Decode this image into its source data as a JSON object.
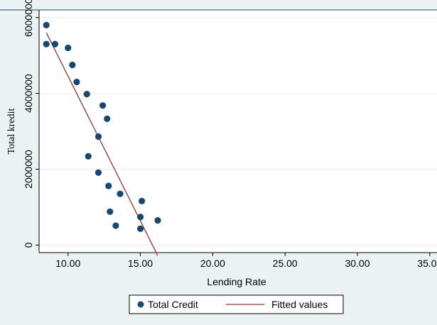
{
  "chart_data": {
    "type": "scatter",
    "xlabel": "Lending Rate",
    "ylabel": "Total kredit",
    "xlim": [
      8.0,
      35.5
    ],
    "ylim": [
      -200000,
      6200000
    ],
    "x_ticks": [
      10,
      15,
      20,
      25,
      30,
      35
    ],
    "x_tick_labels": [
      "10.00",
      "15.00",
      "20.00",
      "25.00",
      "30.00",
      "35.00"
    ],
    "y_ticks": [
      0,
      2000000,
      4000000,
      6000000
    ],
    "y_tick_labels": [
      "0",
      "2000000",
      "4000000",
      "6000000"
    ],
    "grid": true,
    "legend_position": "bottom",
    "colors": {
      "plot_bg": "#ffffff",
      "outer_bg": "#eaf2f3",
      "grid": "#e6ecee",
      "scatter": "#1a476f",
      "fit": "#90353b",
      "axis": "#000000"
    },
    "series": [
      {
        "name": "Total Credit",
        "kind": "scatter",
        "points": [
          {
            "x": 8.5,
            "y": 5800000
          },
          {
            "x": 8.5,
            "y": 5300000
          },
          {
            "x": 9.1,
            "y": 5300000
          },
          {
            "x": 10.0,
            "y": 5200000
          },
          {
            "x": 10.3,
            "y": 4750000
          },
          {
            "x": 10.6,
            "y": 4300000
          },
          {
            "x": 11.3,
            "y": 3980000
          },
          {
            "x": 12.4,
            "y": 3680000
          },
          {
            "x": 12.7,
            "y": 3330000
          },
          {
            "x": 12.1,
            "y": 2860000
          },
          {
            "x": 11.4,
            "y": 2340000
          },
          {
            "x": 12.1,
            "y": 1910000
          },
          {
            "x": 12.8,
            "y": 1560000
          },
          {
            "x": 13.6,
            "y": 1350000
          },
          {
            "x": 15.1,
            "y": 1160000
          },
          {
            "x": 12.9,
            "y": 880000
          },
          {
            "x": 15.0,
            "y": 740000
          },
          {
            "x": 16.2,
            "y": 650000
          },
          {
            "x": 13.3,
            "y": 510000
          },
          {
            "x": 15.0,
            "y": 430000
          }
        ]
      },
      {
        "name": "Fitted values",
        "kind": "line",
        "points": [
          {
            "x": 8.5,
            "y": 5600000
          },
          {
            "x": 16.2,
            "y": -280000
          }
        ]
      }
    ]
  }
}
